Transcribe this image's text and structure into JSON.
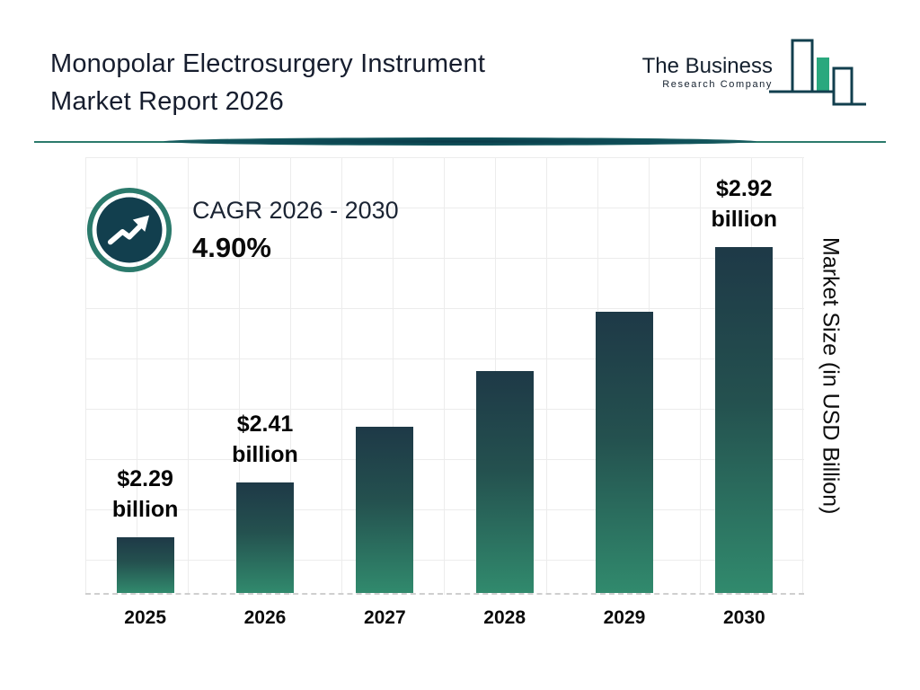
{
  "header": {
    "title_line1": "Monopolar Electrosurgery Instrument",
    "title_line2": "Market Report 2026",
    "logo": {
      "line1": "The Business",
      "line2": "Research Company"
    }
  },
  "cagr": {
    "label": "CAGR 2026 - 2030",
    "value": "4.90%",
    "icon": "trend-up-arrow-icon"
  },
  "chart_data": {
    "type": "bar",
    "categories": [
      "2025",
      "2026",
      "2027",
      "2028",
      "2029",
      "2030"
    ],
    "values": [
      2.29,
      2.41,
      2.53,
      2.65,
      2.78,
      2.92
    ],
    "value_labels": [
      [
        "$2.29",
        "billion"
      ],
      [
        "$2.41",
        "billion"
      ],
      null,
      null,
      null,
      [
        "$2.92",
        "billion"
      ]
    ],
    "ylabel": "Market Size (in USD Billion)",
    "ylim": [
      2.17,
      3.11
    ],
    "grid": true,
    "legend_position": "none",
    "colors": {
      "bar_top": "#1e3947",
      "bar_bottom": "#318a6d",
      "accent": "#2b7a6c",
      "dark": "#123f4e"
    }
  }
}
